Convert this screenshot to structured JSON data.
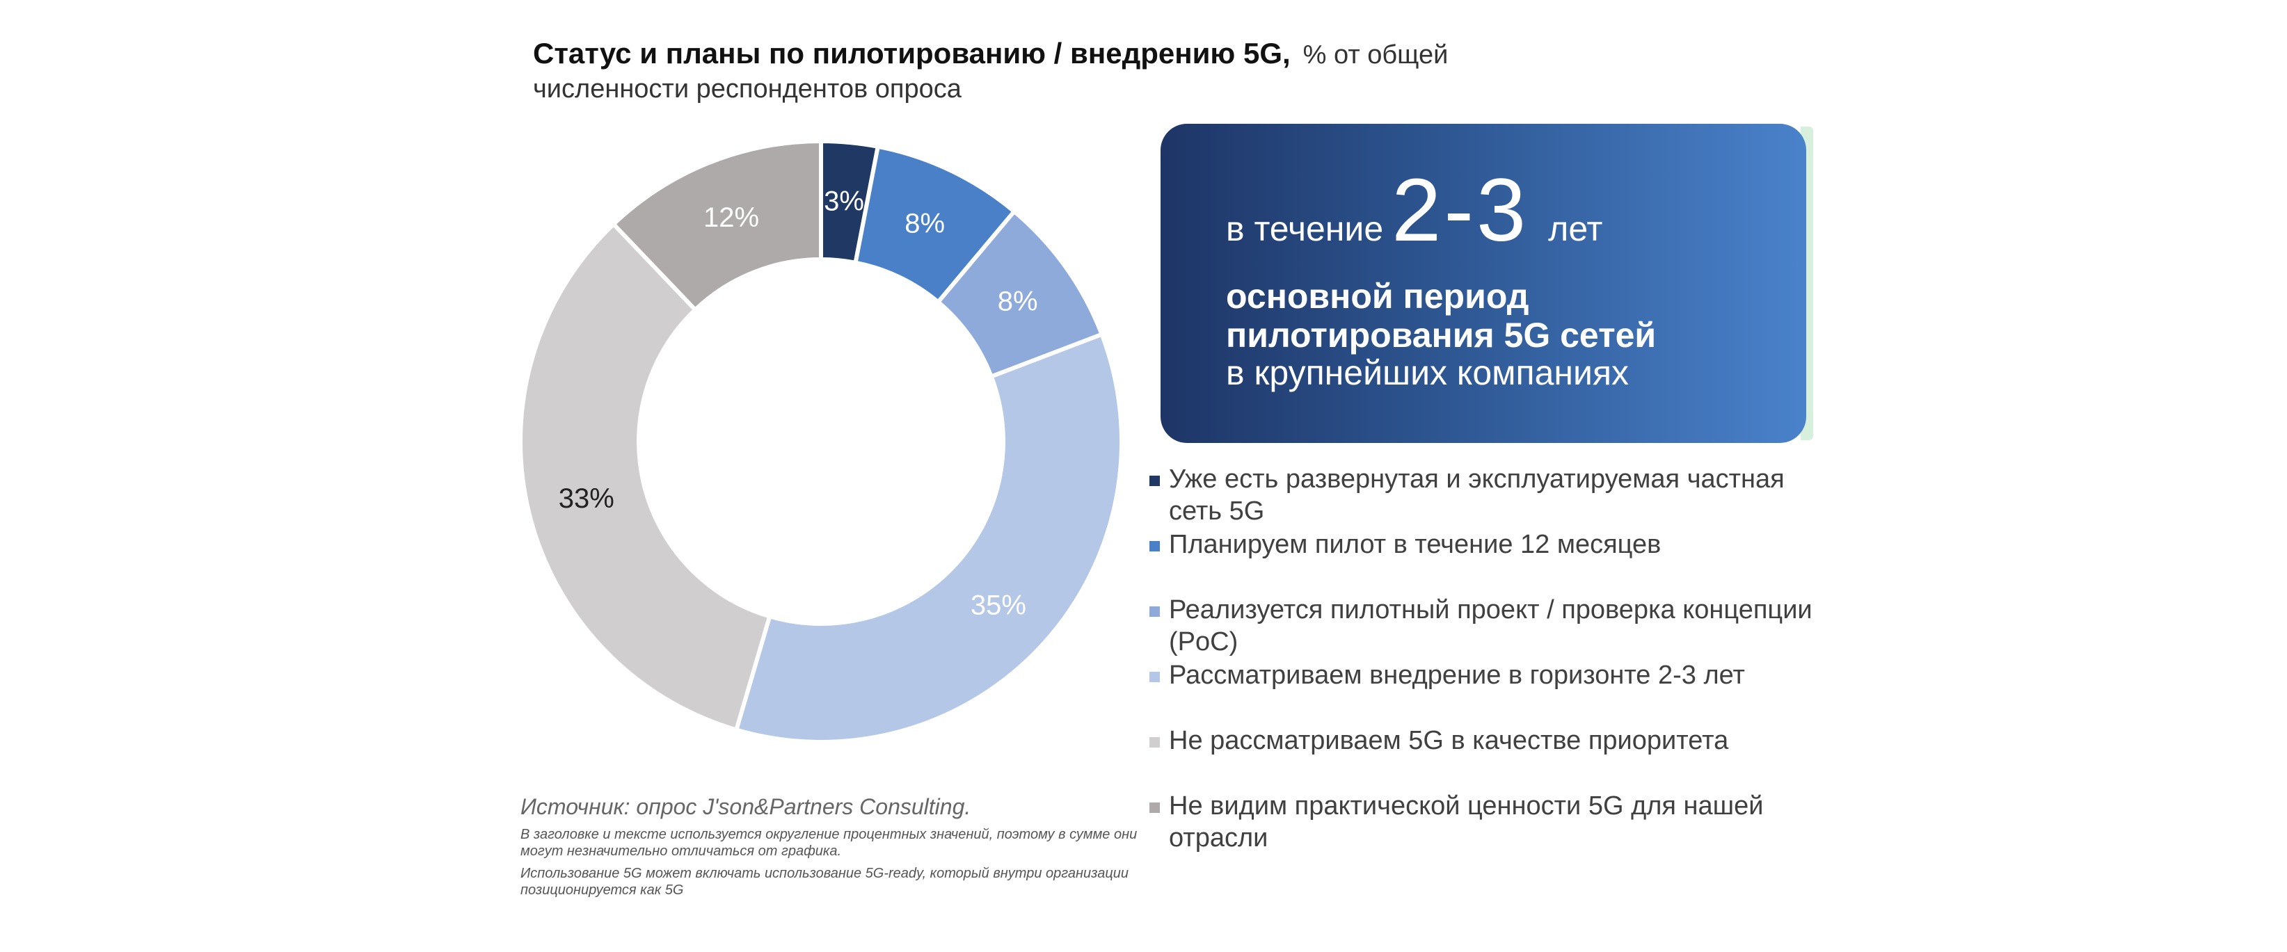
{
  "title": {
    "main": "Статус и планы по пилотированию / внедрению 5G,",
    "sub": "% от общей",
    "line2": "численности респондентов опроса"
  },
  "callout": {
    "prefix": "в течение",
    "big": "2-3",
    "suffix": "лет",
    "bold": "основной период пилотирования 5G сетей",
    "plain": "в крупнейших компаниях"
  },
  "source": "Источник: опрос J'son&Partners Consulting.",
  "notes": [
    "В заголовке и тексте используется округление процентных значений, поэтому в сумме они могут незначительно отличаться от графика.",
    "Использование 5G может включать использование 5G-ready, который внутри организации позиционируется как 5G"
  ],
  "chart_data": {
    "type": "pie",
    "donut": true,
    "legend_position": "right",
    "categories": [
      "Уже есть развернутая и эксплуатируемая частная сеть 5G",
      "Планируем пилот в течение 12 месяцев",
      "Реализуется пилотный проект / проверка концепции (PoC)",
      "Рассматриваем внедрение в горизонте 2-3 лет",
      "Не рассматриваем 5G в качестве приоритета",
      "Не видим практической ценности 5G для нашей отрасли"
    ],
    "values": [
      3,
      8,
      8,
      35,
      33,
      12
    ],
    "labels": [
      "3%",
      "8%",
      "8%",
      "35%",
      "33%",
      "12%"
    ],
    "colors": [
      "#1f3864",
      "#4a80c8",
      "#8eaadb",
      "#b4c7e7",
      "#d0cece",
      "#aeaaaa"
    ],
    "label_colors": [
      "#ffffff",
      "#ffffff",
      "#ffffff",
      "#ffffff",
      "#222222",
      "#ffffff"
    ]
  }
}
